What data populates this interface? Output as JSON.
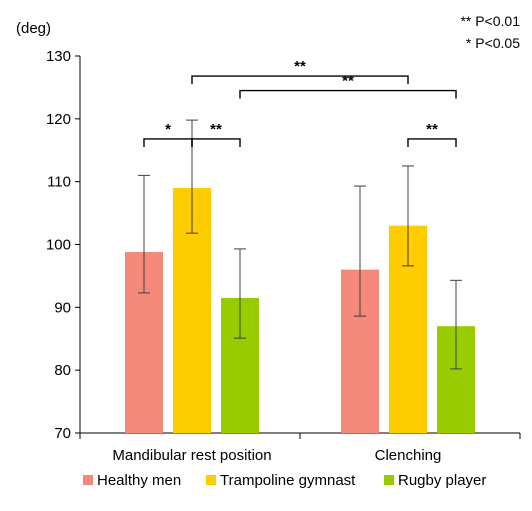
{
  "chart_data": {
    "type": "bar",
    "ylabel": "(deg)",
    "ylim": [
      70,
      130
    ],
    "yticks": [
      70,
      80,
      90,
      100,
      110,
      120,
      130
    ],
    "categories": [
      "Mandibular rest position",
      "Clenching"
    ],
    "series": [
      {
        "name": "Healthy men",
        "color": "#F4897A",
        "values": [
          98.8,
          96.0
        ],
        "err_low": [
          92.3,
          88.6
        ],
        "err_high": [
          111.0,
          109.3
        ]
      },
      {
        "name": "Trampoline gymnast",
        "color": "#FFCC00",
        "values": [
          109.0,
          103.0
        ],
        "err_low": [
          101.8,
          96.6
        ],
        "err_high": [
          119.8,
          112.5
        ]
      },
      {
        "name": "Rugby player",
        "color": "#99CC00",
        "values": [
          91.5,
          87.0
        ],
        "err_low": [
          85.1,
          80.2
        ],
        "err_high": [
          99.3,
          94.3
        ]
      }
    ],
    "significance_note": [
      "** P<0.01",
      "* P<0.05"
    ],
    "significance": [
      {
        "from": [
          0,
          0
        ],
        "to": [
          0,
          1
        ],
        "label": "*",
        "y": 116.8
      },
      {
        "from": [
          0,
          1
        ],
        "to": [
          0,
          2
        ],
        "label": "**",
        "y": 116.8
      },
      {
        "from": [
          0,
          1
        ],
        "to": [
          1,
          1
        ],
        "label": "**",
        "y": 126.8
      },
      {
        "from": [
          0,
          2
        ],
        "to": [
          1,
          2
        ],
        "label": "**",
        "y": 124.5
      },
      {
        "from": [
          1,
          1
        ],
        "to": [
          1,
          2
        ],
        "label": "**",
        "y": 116.8
      }
    ],
    "legend_position": "bottom"
  }
}
